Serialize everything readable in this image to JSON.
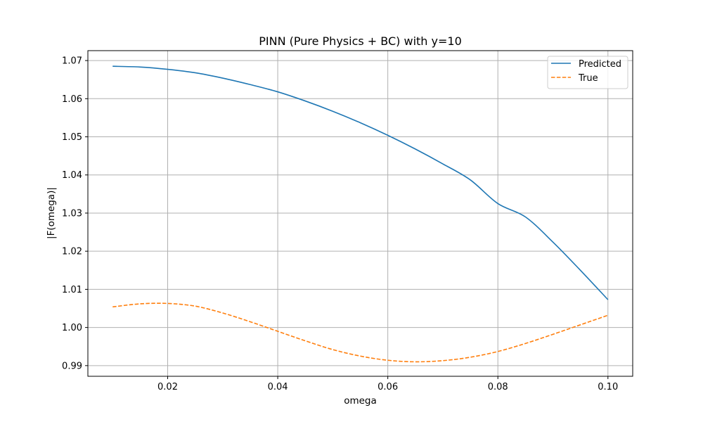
{
  "chart_data": {
    "type": "line",
    "title": "PINN (Pure Physics + BC) with y=10",
    "xlabel": "omega",
    "ylabel": "|F(omega)|",
    "xlim": [
      0.0055,
      0.1045
    ],
    "ylim": [
      0.9872,
      1.0726
    ],
    "xticks": [
      0.02,
      0.04,
      0.06,
      0.08,
      0.1
    ],
    "xtick_labels": [
      "0.02",
      "0.04",
      "0.06",
      "0.08",
      "0.10"
    ],
    "yticks": [
      0.99,
      1.0,
      1.01,
      1.02,
      1.03,
      1.04,
      1.05,
      1.06,
      1.07
    ],
    "ytick_labels": [
      "0.99",
      "1.00",
      "1.01",
      "1.02",
      "1.03",
      "1.04",
      "1.05",
      "1.06",
      "1.07"
    ],
    "grid": true,
    "legend_position": "top-right",
    "x": [
      0.01,
      0.015,
      0.02,
      0.025,
      0.03,
      0.035,
      0.04,
      0.045,
      0.05,
      0.055,
      0.06,
      0.065,
      0.07,
      0.075,
      0.08,
      0.085,
      0.09,
      0.095,
      0.1
    ],
    "series": [
      {
        "name": "Predicted",
        "style": "solid",
        "color": "#1f77b4",
        "values": [
          1.0685,
          1.0683,
          1.0677,
          1.0668,
          1.0654,
          1.0637,
          1.0618,
          1.0594,
          1.0567,
          1.0537,
          1.0504,
          1.0468,
          1.0429,
          1.0387,
          1.0325,
          1.029,
          1.0224,
          1.015,
          1.0073
        ]
      },
      {
        "name": "True",
        "style": "dashed",
        "color": "#ff7f0e",
        "values": [
          1.0054,
          1.0062,
          1.0063,
          1.0056,
          1.0038,
          1.0015,
          0.999,
          0.9965,
          0.9942,
          0.9925,
          0.9914,
          0.991,
          0.9913,
          0.9922,
          0.9937,
          0.9958,
          0.9982,
          1.0007,
          1.0032
        ]
      }
    ]
  }
}
